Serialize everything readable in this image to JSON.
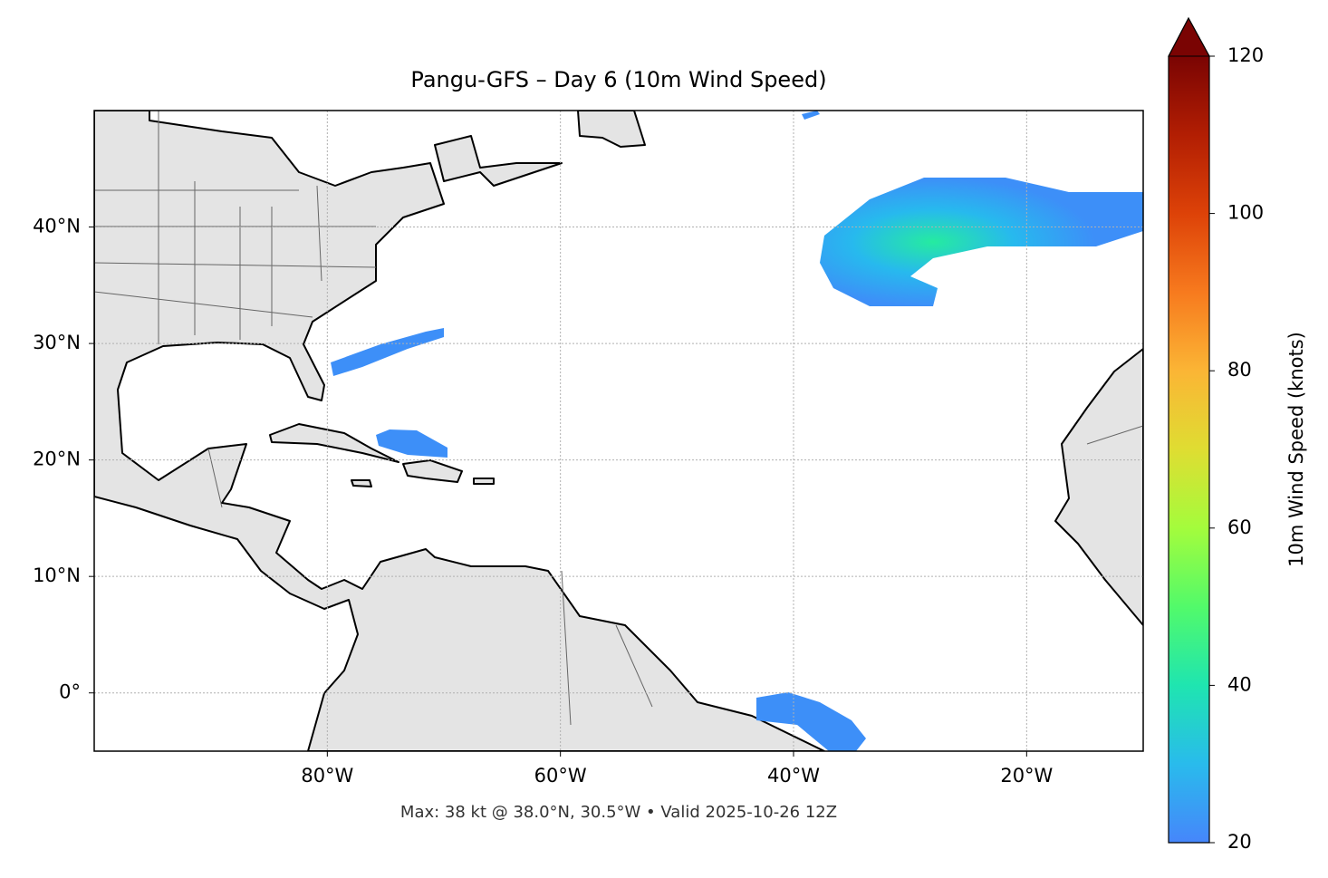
{
  "chart_data": {
    "type": "map",
    "title": "Pangu-GFS – Day 6 (10m Wind Speed)",
    "footnote": "Max: 38 kt @ 38.0°N, 30.5°W • Valid 2025-10-26 12Z",
    "xlim": [
      -100,
      -10
    ],
    "ylim": [
      -5,
      50
    ],
    "xticks": [
      {
        "value": -80,
        "label": "80°W"
      },
      {
        "value": -60,
        "label": "60°W"
      },
      {
        "value": -40,
        "label": "40°W"
      },
      {
        "value": -20,
        "label": "20°W"
      }
    ],
    "yticks": [
      {
        "value": 0,
        "label": "0°"
      },
      {
        "value": 10,
        "label": "10°N"
      },
      {
        "value": 20,
        "label": "20°N"
      },
      {
        "value": 30,
        "label": "30°N"
      },
      {
        "value": 40,
        "label": "40°N"
      }
    ],
    "grid": true,
    "colorbar": {
      "label": "10m Wind Speed (knots)",
      "lim": [
        20,
        120
      ],
      "ticks": [
        20,
        40,
        60,
        80,
        100,
        120
      ]
    }
  }
}
